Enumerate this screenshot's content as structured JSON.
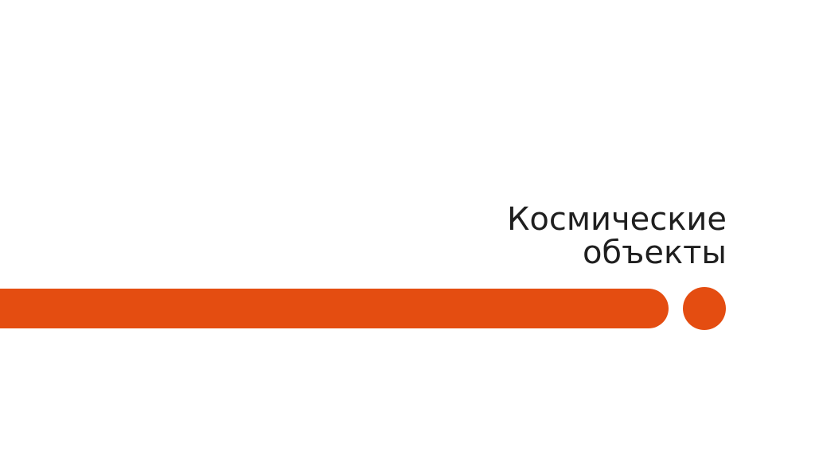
{
  "colors": {
    "accent": "#e44d11",
    "title-color": "#1f1f1f",
    "bg": "#ffffff"
  },
  "slide": {
    "title_lines": [
      "Космические",
      "объекты"
    ]
  }
}
